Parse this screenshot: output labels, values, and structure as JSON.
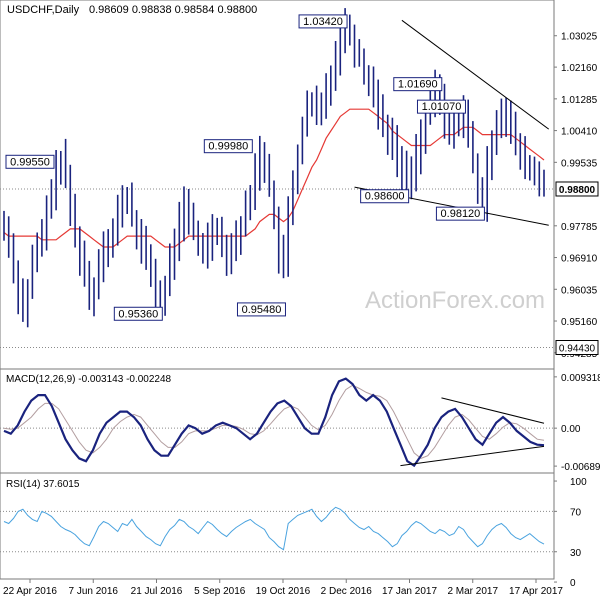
{
  "header": {
    "symbol": "USDCHF,Daily",
    "ohlc": "0.98609 0.98838 0.98584 0.98800"
  },
  "watermark": "ActionForex.com",
  "colors": {
    "candle": "#1a237e",
    "ma": "#e53935",
    "macd_line": "#1a237e",
    "macd_signal": "#b39ea0",
    "rsi": "#4aa3df",
    "grid": "#8a8a8a",
    "trend": "#000000",
    "watermark": "#cfcfcf",
    "frame": "#7a7a7a"
  },
  "chart_data": [
    {
      "type": "line",
      "name": "price",
      "ylim": [
        0.9392,
        1.039
      ],
      "y_ticks": [
        "1.03025",
        "1.02160",
        "1.01285",
        "1.00410",
        "0.99535",
        "0.97785",
        "0.96910",
        "0.96035",
        "0.95160",
        "0.94285"
      ],
      "y_tick_values": [
        1.03025,
        1.0216,
        1.01285,
        1.0041,
        0.99535,
        0.97785,
        0.9691,
        0.96035,
        0.9516,
        0.94285
      ],
      "current_label": "0.98800",
      "current_value": 0.988,
      "support_label": "0.94430",
      "support_value": 0.9443,
      "x_ticks": [
        "22 Apr 2016",
        "7 Jun 2016",
        "21 Jul 2016",
        "5 Sep 2016",
        "19 Oct 2016",
        "2 Dec 2016",
        "17 Jan 2017",
        "2 Mar 2017",
        "17 Apr 2017"
      ],
      "series_values": [
        0.978,
        0.972,
        0.966,
        0.959,
        0.955,
        0.96,
        0.968,
        0.972,
        0.975,
        0.982,
        0.988,
        0.993,
        0.996,
        0.991,
        0.982,
        0.975,
        0.97,
        0.964,
        0.958,
        0.961,
        0.968,
        0.974,
        0.972,
        0.976,
        0.982,
        0.984,
        0.986,
        0.98,
        0.975,
        0.972,
        0.969,
        0.965,
        0.959,
        0.956,
        0.961,
        0.968,
        0.974,
        0.979,
        0.983,
        0.98,
        0.976,
        0.973,
        0.971,
        0.974,
        0.978,
        0.976,
        0.973,
        0.97,
        0.972,
        0.975,
        0.978,
        0.982,
        0.987,
        0.993,
        0.998,
        0.995,
        0.988,
        0.979,
        0.97,
        0.966,
        0.982,
        0.99,
        0.998,
        1.005,
        1.01,
        1.012,
        1.008,
        1.011,
        1.016,
        1.02,
        1.025,
        1.03,
        1.033,
        1.031,
        1.027,
        1.024,
        1.02,
        1.018,
        1.014,
        1.01,
        1.006,
        1.003,
        1.0,
        0.996,
        0.993,
        0.99,
        0.993,
        0.998,
        1.003,
        1.008,
        1.012,
        1.015,
        1.012,
        1.007,
        1.004,
        1.006,
        1.01,
        1.008,
        1.002,
        0.995,
        0.988,
        0.983,
        0.994,
        1.002,
        1.007,
        1.01,
        1.008,
        1.004,
        1.0,
        0.997,
        0.995,
        0.993,
        0.992,
        0.99,
        0.988
      ],
      "ma_values": [
        0.976,
        0.975,
        0.975,
        0.975,
        0.975,
        0.975,
        0.975,
        0.975,
        0.974,
        0.974,
        0.974,
        0.974,
        0.975,
        0.976,
        0.977,
        0.977,
        0.977,
        0.976,
        0.975,
        0.974,
        0.973,
        0.972,
        0.972,
        0.972,
        0.973,
        0.974,
        0.975,
        0.975,
        0.975,
        0.975,
        0.975,
        0.975,
        0.974,
        0.973,
        0.972,
        0.972,
        0.972,
        0.973,
        0.974,
        0.975,
        0.975,
        0.975,
        0.975,
        0.975,
        0.975,
        0.975,
        0.975,
        0.975,
        0.975,
        0.975,
        0.975,
        0.975,
        0.976,
        0.977,
        0.979,
        0.98,
        0.981,
        0.981,
        0.98,
        0.979,
        0.98,
        0.982,
        0.985,
        0.988,
        0.991,
        0.994,
        0.996,
        0.999,
        1.002,
        1.004,
        1.006,
        1.008,
        1.009,
        1.01,
        1.01,
        1.01,
        1.01,
        1.01,
        1.009,
        1.008,
        1.007,
        1.006,
        1.004,
        1.003,
        1.002,
        1.001,
        1.0,
        1.0,
        1.0,
        1.0,
        1.0,
        1.001,
        1.002,
        1.003,
        1.003,
        1.003,
        1.004,
        1.005,
        1.005,
        1.005,
        1.004,
        1.003,
        1.003,
        1.003,
        1.003,
        1.003,
        1.003,
        1.003,
        1.002,
        1.001,
        1.0,
        0.999,
        0.998,
        0.997,
        0.996
      ],
      "annotations": [
        {
          "text": "0.99550",
          "idx": 0,
          "value": 0.9955,
          "side": "right"
        },
        {
          "text": "0.95360",
          "idx": 33,
          "value": 0.9536,
          "side": "left"
        },
        {
          "text": "0.99980",
          "idx": 52,
          "value": 0.9998,
          "side": "left"
        },
        {
          "text": "0.95480",
          "idx": 59,
          "value": 0.9548,
          "side": "left"
        },
        {
          "text": "1.03420",
          "idx": 72,
          "value": 1.0342,
          "side": "left"
        },
        {
          "text": "0.98600",
          "idx": 85,
          "value": 0.986,
          "side": "left"
        },
        {
          "text": "1.01690",
          "idx": 92,
          "value": 1.0169,
          "side": "left"
        },
        {
          "text": "1.01070",
          "idx": 97,
          "value": 1.0107,
          "side": "left"
        },
        {
          "text": "0.98120",
          "idx": 101,
          "value": 0.9812,
          "side": "left"
        }
      ],
      "trendlines": [
        {
          "x1": 84,
          "y1": 1.0345,
          "x2": 115,
          "y2": 1.0045
        },
        {
          "x1": 74,
          "y1": 0.9885,
          "x2": 115,
          "y2": 0.978
        }
      ]
    },
    {
      "type": "line",
      "name": "MACD(12,26,9) -0.003143 -0.002248",
      "ylim": [
        -0.0076,
        0.0102
      ],
      "y_ticks": [
        "0.009318",
        "0.00",
        "-0.006894"
      ],
      "y_tick_values": [
        0.009318,
        0,
        -0.006894
      ],
      "macd_values": [
        -0.0005,
        -0.001,
        0.0005,
        0.003,
        0.005,
        0.006,
        0.006,
        0.004,
        0.001,
        -0.002,
        -0.004,
        -0.0055,
        -0.006,
        -0.004,
        -0.001,
        0.001,
        0.002,
        0.003,
        0.003,
        0.002,
        0.0005,
        -0.002,
        -0.004,
        -0.005,
        -0.005,
        -0.003,
        -0.001,
        0.0005,
        0.0,
        -0.001,
        -0.0005,
        0.0005,
        0.001,
        0.0005,
        0.0,
        -0.001,
        -0.002,
        -0.001,
        0.001,
        0.003,
        0.0045,
        0.005,
        0.004,
        0.002,
        0.0,
        -0.001,
        -0.001,
        0.002,
        0.006,
        0.0085,
        0.009,
        0.008,
        0.006,
        0.005,
        0.006,
        0.005,
        0.003,
        0.0,
        -0.003,
        -0.006,
        -0.0068,
        -0.005,
        -0.003,
        0.0,
        0.002,
        0.003,
        0.0035,
        0.002,
        0.0,
        -0.002,
        -0.003,
        -0.001,
        0.001,
        0.002,
        0.001,
        -0.0005,
        -0.0015,
        -0.0025,
        -0.003,
        -0.0031
      ],
      "signal_values": [
        0.0,
        -0.0002,
        0.0,
        0.001,
        0.002,
        0.0035,
        0.0045,
        0.0045,
        0.0035,
        0.0015,
        -0.0005,
        -0.0025,
        -0.004,
        -0.0045,
        -0.0035,
        -0.002,
        0.0,
        0.0012,
        0.002,
        0.0025,
        0.002,
        0.0005,
        -0.001,
        -0.0025,
        -0.0035,
        -0.0035,
        -0.0025,
        -0.001,
        -0.0005,
        -0.0005,
        -0.0005,
        0.0,
        0.0005,
        0.0005,
        0.0003,
        -0.0002,
        -0.001,
        -0.0012,
        -0.0005,
        0.0008,
        0.0022,
        0.0035,
        0.004,
        0.0035,
        0.002,
        0.0005,
        -0.0003,
        0.0005,
        0.0025,
        0.005,
        0.007,
        0.0078,
        0.0072,
        0.0065,
        0.006,
        0.0058,
        0.005,
        0.003,
        0.0005,
        -0.002,
        -0.0045,
        -0.0055,
        -0.005,
        -0.0035,
        -0.0015,
        0.0005,
        0.002,
        0.0025,
        0.0015,
        0.0,
        -0.0015,
        -0.002,
        -0.001,
        0.0002,
        0.001,
        0.0008,
        0.0,
        -0.001,
        -0.002,
        -0.0022
      ],
      "trendlines": [
        {
          "x1": 64,
          "y1": 0.0055,
          "x2": 79,
          "y2": 0.0009
        },
        {
          "x1": 58,
          "y1": -0.0068,
          "x2": 79,
          "y2": -0.0033
        }
      ]
    },
    {
      "type": "line",
      "name": "RSI(14) 37.6015",
      "ylim": [
        5,
        105
      ],
      "y_ticks": [
        "100",
        "70",
        "30",
        "0"
      ],
      "y_tick_values": [
        100,
        70,
        30,
        0
      ],
      "rsi_values": [
        60,
        58,
        63,
        70,
        72,
        66,
        62,
        60,
        70,
        68,
        65,
        60,
        55,
        52,
        50,
        47,
        42,
        38,
        36,
        45,
        55,
        60,
        58,
        54,
        50,
        58,
        56,
        62,
        55,
        50,
        45,
        42,
        38,
        36,
        45,
        52,
        56,
        62,
        60,
        55,
        52,
        48,
        54,
        60,
        57,
        52,
        48,
        45,
        50,
        54,
        57,
        60,
        62,
        58,
        55,
        52,
        44,
        40,
        35,
        32,
        58,
        62,
        66,
        68,
        70,
        72,
        65,
        60,
        64,
        70,
        74,
        72,
        68,
        62,
        58,
        54,
        52,
        55,
        50,
        48,
        44,
        40,
        35,
        38,
        46,
        50,
        56,
        60,
        58,
        54,
        50,
        48,
        52,
        50,
        46,
        48,
        55,
        52,
        45,
        40,
        35,
        38,
        46,
        52,
        56,
        58,
        54,
        48,
        44,
        42,
        45,
        48,
        44,
        40,
        37.6
      ]
    }
  ]
}
